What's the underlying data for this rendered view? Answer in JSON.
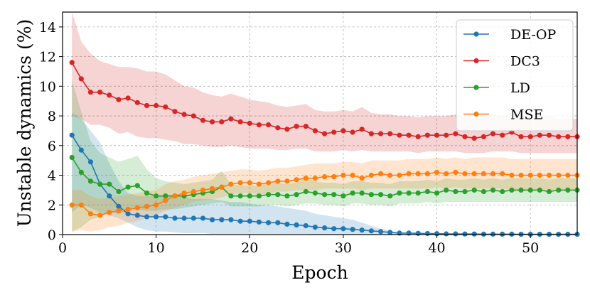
{
  "chart_data": {
    "type": "line",
    "title": "",
    "xlabel": "Epoch",
    "ylabel": "Unstable dynamics (%)",
    "xlim": [
      0,
      55
    ],
    "ylim": [
      0,
      15
    ],
    "xticks": [
      0,
      10,
      20,
      30,
      40,
      50
    ],
    "yticks": [
      0,
      2,
      4,
      6,
      8,
      10,
      12,
      14
    ],
    "grid": true,
    "legend_position": "top-right",
    "x": [
      1,
      2,
      3,
      4,
      5,
      6,
      7,
      8,
      9,
      10,
      11,
      12,
      13,
      14,
      15,
      16,
      17,
      18,
      19,
      20,
      21,
      22,
      23,
      24,
      25,
      26,
      27,
      28,
      29,
      30,
      31,
      32,
      33,
      34,
      35,
      36,
      37,
      38,
      39,
      40,
      41,
      42,
      43,
      44,
      45,
      46,
      47,
      48,
      49,
      50,
      51,
      52,
      53,
      54,
      55
    ],
    "series": [
      {
        "name": "DE-OP",
        "color": "#1f77b4",
        "values": [
          6.7,
          5.7,
          4.9,
          3.4,
          2.6,
          1.9,
          1.4,
          1.3,
          1.2,
          1.2,
          1.2,
          1.1,
          1.1,
          1.1,
          1.1,
          1.0,
          1.0,
          1.0,
          0.9,
          0.9,
          0.85,
          0.8,
          0.8,
          0.7,
          0.65,
          0.6,
          0.5,
          0.45,
          0.4,
          0.4,
          0.35,
          0.3,
          0.25,
          0.2,
          0.15,
          0.1,
          0.1,
          0.08,
          0.07,
          0.06,
          0.05,
          0.05,
          0.04,
          0.04,
          0.03,
          0.03,
          0.03,
          0.03,
          0.02,
          0.02,
          0.02,
          0.02,
          0.02,
          0.02,
          0.02
        ],
        "lower": [
          1.5,
          2.0,
          1.8,
          1.5,
          1.3,
          1.1,
          0.8,
          0.5,
          0.3,
          0.2,
          0.2,
          0.15,
          0.1,
          0.1,
          0.1,
          0.05,
          0.05,
          0.05,
          0.05,
          0.05,
          0.05,
          0.05,
          0.05,
          0.05,
          0.05,
          0.05,
          0.02,
          0.02,
          0.02,
          0.02,
          0.02,
          0.02,
          0.02,
          0.01,
          0.01,
          0,
          0,
          0,
          0,
          0,
          0,
          0,
          0,
          0,
          0,
          0,
          0,
          0,
          0,
          0,
          0,
          0,
          0,
          0,
          0
        ],
        "upper": [
          8.2,
          7.8,
          7.0,
          6.2,
          4.8,
          3.6,
          2.8,
          2.6,
          2.6,
          2.6,
          2.6,
          2.6,
          2.5,
          2.4,
          2.4,
          2.4,
          2.3,
          2.2,
          2.2,
          2.1,
          2.0,
          2.0,
          1.9,
          1.8,
          1.7,
          1.6,
          1.4,
          1.3,
          1.2,
          1.1,
          1.0,
          0.8,
          0.6,
          0.4,
          0.25,
          0.15,
          0.12,
          0.1,
          0.09,
          0.08,
          0.07,
          0.06,
          0.05,
          0.05,
          0.05,
          0.04,
          0.04,
          0.04,
          0.03,
          0.03,
          0.03,
          0.03,
          0.03,
          0.03,
          0.03
        ]
      },
      {
        "name": "DC3",
        "color": "#d62728",
        "values": [
          11.6,
          10.5,
          9.6,
          9.6,
          9.4,
          9.1,
          9.2,
          8.9,
          8.7,
          8.7,
          8.6,
          8.3,
          8.1,
          8.0,
          7.7,
          7.6,
          7.6,
          7.8,
          7.6,
          7.5,
          7.4,
          7.4,
          7.2,
          7.1,
          7.3,
          7.3,
          7.0,
          6.8,
          6.9,
          7.0,
          6.9,
          7.1,
          6.8,
          6.8,
          6.8,
          6.7,
          6.7,
          6.6,
          6.7,
          6.7,
          6.7,
          6.8,
          6.6,
          6.5,
          6.6,
          6.8,
          6.7,
          6.9,
          6.6,
          6.6,
          6.7,
          6.7,
          6.6,
          6.6,
          6.6
        ],
        "lower": [
          8.0,
          7.8,
          7.4,
          7.4,
          7.2,
          6.8,
          6.9,
          6.6,
          6.5,
          6.5,
          6.4,
          6.3,
          6.1,
          6.1,
          6.0,
          5.9,
          5.9,
          6.0,
          5.9,
          5.8,
          5.8,
          5.8,
          5.7,
          5.7,
          5.8,
          5.8,
          5.6,
          5.6,
          5.6,
          5.7,
          5.6,
          5.7,
          5.6,
          5.6,
          5.6,
          5.6,
          5.6,
          5.5,
          5.6,
          5.6,
          5.6,
          5.6,
          5.5,
          5.5,
          5.5,
          5.6,
          5.6,
          5.6,
          5.5,
          5.5,
          5.5,
          5.5,
          5.5,
          5.5,
          5.5
        ],
        "upper": [
          15.0,
          13.0,
          12.2,
          11.7,
          11.5,
          11.3,
          11.3,
          11.2,
          11.0,
          11.0,
          10.8,
          10.4,
          10.0,
          9.9,
          9.6,
          9.4,
          9.3,
          9.5,
          9.3,
          9.1,
          9.0,
          8.9,
          8.7,
          8.6,
          8.7,
          8.8,
          8.4,
          8.3,
          8.3,
          8.4,
          8.3,
          8.6,
          8.2,
          8.1,
          8.1,
          8.0,
          8.0,
          7.9,
          8.0,
          8.0,
          8.0,
          8.1,
          7.9,
          7.8,
          7.9,
          8.1,
          8.0,
          8.1,
          7.9,
          7.9,
          8.0,
          8.0,
          7.8,
          7.8,
          7.8
        ]
      },
      {
        "name": "LD",
        "color": "#2ca02c",
        "values": [
          5.2,
          4.2,
          3.6,
          3.4,
          3.4,
          2.9,
          3.2,
          3.3,
          2.8,
          2.6,
          2.6,
          2.6,
          2.6,
          2.7,
          2.8,
          2.9,
          3.2,
          2.6,
          2.6,
          2.6,
          2.6,
          2.7,
          2.7,
          2.6,
          2.7,
          2.9,
          2.8,
          2.7,
          2.7,
          2.6,
          2.8,
          2.8,
          2.7,
          2.7,
          2.6,
          2.8,
          2.8,
          2.8,
          2.9,
          2.8,
          3.0,
          2.9,
          2.9,
          3.0,
          2.9,
          3.0,
          2.9,
          3.0,
          3.0,
          3.0,
          3.0,
          2.9,
          3.0,
          3.0,
          3.0
        ],
        "lower": [
          0.2,
          0.5,
          1.0,
          1.2,
          1.5,
          1.4,
          1.6,
          1.7,
          1.6,
          1.6,
          1.7,
          1.7,
          1.8,
          1.9,
          2.0,
          2.1,
          2.2,
          1.9,
          1.9,
          1.9,
          1.9,
          2.0,
          2.0,
          1.9,
          2.0,
          2.1,
          2.1,
          2.0,
          2.0,
          1.9,
          2.1,
          2.1,
          2.0,
          2.0,
          1.9,
          2.1,
          2.1,
          2.1,
          2.2,
          2.1,
          2.2,
          2.2,
          2.2,
          2.2,
          2.2,
          2.2,
          2.2,
          2.2,
          2.2,
          2.2,
          2.2,
          2.2,
          2.2,
          2.2,
          2.2
        ],
        "upper": [
          10.4,
          8.3,
          6.3,
          5.5,
          5.2,
          4.9,
          5.1,
          5.3,
          4.4,
          3.8,
          3.6,
          3.5,
          3.4,
          3.5,
          3.6,
          3.7,
          4.3,
          3.4,
          3.3,
          3.3,
          3.3,
          3.5,
          3.5,
          3.4,
          3.5,
          3.8,
          3.6,
          3.5,
          3.5,
          3.4,
          3.6,
          3.6,
          3.5,
          3.5,
          3.4,
          3.6,
          3.6,
          3.6,
          3.7,
          3.6,
          3.8,
          3.7,
          3.7,
          3.8,
          3.7,
          3.8,
          3.7,
          3.8,
          3.8,
          3.8,
          3.8,
          3.7,
          3.8,
          3.8,
          3.8
        ]
      },
      {
        "name": "MSE",
        "color": "#ff7f0e",
        "values": [
          2.0,
          2.0,
          1.4,
          1.3,
          1.5,
          1.6,
          1.7,
          1.8,
          1.9,
          2.0,
          2.3,
          2.6,
          2.8,
          2.9,
          3.0,
          3.1,
          3.2,
          3.4,
          3.5,
          3.5,
          3.4,
          3.5,
          3.6,
          3.6,
          3.7,
          3.8,
          3.8,
          3.9,
          3.9,
          4.0,
          4.0,
          3.8,
          4.0,
          4.1,
          4.0,
          4.0,
          4.1,
          4.1,
          4.1,
          4.2,
          4.1,
          4.2,
          4.1,
          4.1,
          4.1,
          4.1,
          4.1,
          4.0,
          4.0,
          4.0,
          4.0,
          4.0,
          4.0,
          4.0,
          4.0
        ],
        "lower": [
          0.2,
          0.3,
          0.2,
          0.3,
          0.5,
          0.6,
          0.8,
          0.9,
          1.1,
          1.3,
          1.6,
          1.8,
          2.0,
          2.2,
          2.3,
          2.4,
          2.5,
          2.7,
          2.8,
          2.8,
          2.7,
          2.8,
          2.9,
          2.9,
          3.0,
          3.0,
          3.0,
          3.1,
          3.1,
          3.1,
          3.1,
          3.0,
          3.1,
          3.1,
          3.1,
          3.1,
          3.1,
          3.1,
          3.1,
          3.2,
          3.1,
          3.2,
          3.1,
          3.1,
          3.1,
          3.1,
          3.1,
          3.0,
          3.0,
          3.0,
          3.0,
          3.0,
          3.0,
          3.0,
          3.0
        ],
        "upper": [
          3.0,
          3.0,
          2.6,
          2.4,
          2.5,
          2.6,
          2.7,
          2.8,
          2.9,
          3.0,
          3.4,
          3.6,
          3.7,
          3.9,
          4.0,
          4.1,
          4.2,
          4.3,
          4.4,
          4.4,
          4.3,
          4.4,
          4.5,
          4.5,
          4.6,
          4.7,
          4.8,
          4.8,
          4.8,
          4.9,
          4.9,
          4.8,
          5.0,
          5.0,
          5.0,
          5.0,
          5.1,
          5.1,
          5.1,
          5.2,
          5.1,
          5.2,
          5.1,
          5.2,
          5.2,
          5.2,
          5.2,
          5.1,
          5.1,
          5.1,
          5.1,
          5.1,
          5.1,
          5.1,
          5.1
        ]
      }
    ]
  }
}
